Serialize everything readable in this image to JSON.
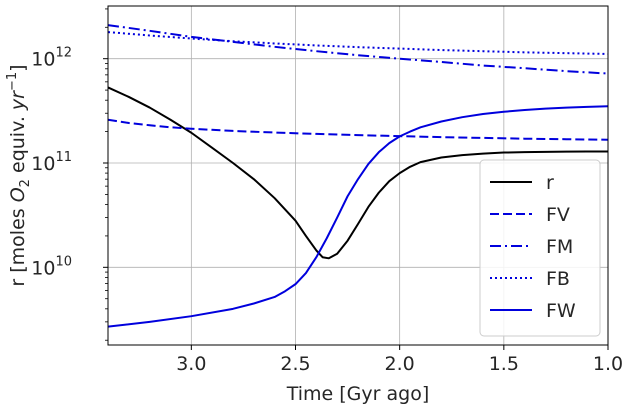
{
  "chart_data": {
    "type": "line",
    "title": "",
    "xlabel": "Time [Gyr ago]",
    "ylabel_parts": {
      "pre": "r [moles ",
      "o": "O",
      "o_sub": "2",
      "mid": " equiv. ",
      "yr": "yr",
      "yr_sup": "−1",
      "post": "]"
    },
    "x_reversed": true,
    "xlim": [
      3.4,
      1.0
    ],
    "ylim": [
      1800000000.0,
      3200000000000.0
    ],
    "yscale": "log",
    "grid": true,
    "legend_position": "lower right",
    "x_ticks": [
      3.0,
      2.5,
      2.0,
      1.5,
      1.0
    ],
    "x_tick_labels": [
      "3.0",
      "2.5",
      "2.0",
      "1.5",
      "1.0"
    ],
    "y_ticks": [
      {
        "value": 10000000000.0,
        "base": "10",
        "exp": "10"
      },
      {
        "value": 100000000000.0,
        "base": "10",
        "exp": "11"
      },
      {
        "value": 1000000000000.0,
        "base": "10",
        "exp": "12"
      }
    ],
    "series": [
      {
        "name": "r",
        "color": "#000000",
        "dash": "solid",
        "x": [
          3.4,
          3.3,
          3.2,
          3.1,
          3.0,
          2.9,
          2.8,
          2.7,
          2.6,
          2.5,
          2.45,
          2.4,
          2.37,
          2.34,
          2.3,
          2.25,
          2.2,
          2.15,
          2.1,
          2.05,
          2.0,
          1.95,
          1.9,
          1.8,
          1.7,
          1.6,
          1.5,
          1.4,
          1.3,
          1.2,
          1.1,
          1.0
        ],
        "y": [
          530000000000.0,
          430000000000.0,
          340000000000.0,
          260000000000.0,
          195000000000.0,
          140000000000.0,
          100000000000.0,
          70000000000.0,
          46000000000.0,
          28000000000.0,
          20000000000.0,
          14500000000.0,
          12500000000.0,
          12200000000.0,
          13500000000.0,
          18000000000.0,
          26000000000.0,
          38000000000.0,
          52000000000.0,
          67000000000.0,
          80000000000.0,
          92000000000.0,
          102000000000.0,
          113000000000.0,
          119000000000.0,
          123000000000.0,
          126000000000.0,
          127000000000.0,
          128000000000.0,
          128500000000.0,
          129000000000.0,
          129000000000.0
        ]
      },
      {
        "name": "FV",
        "color": "#0000dd",
        "dash": "dashed",
        "x": [
          3.4,
          3.3,
          3.2,
          3.1,
          3.0,
          2.8,
          2.6,
          2.4,
          2.2,
          2.0,
          1.8,
          1.6,
          1.4,
          1.2,
          1.0
        ],
        "y": [
          260000000000.0,
          242000000000.0,
          230000000000.0,
          220000000000.0,
          213000000000.0,
          203000000000.0,
          196000000000.0,
          190000000000.0,
          185000000000.0,
          181000000000.0,
          177000000000.0,
          174000000000.0,
          171000000000.0,
          169000000000.0,
          167000000000.0
        ]
      },
      {
        "name": "FM",
        "color": "#0000dd",
        "dash": "dashdot",
        "x": [
          3.4,
          3.2,
          3.0,
          2.8,
          2.6,
          2.4,
          2.2,
          2.0,
          1.8,
          1.6,
          1.4,
          1.2,
          1.0
        ],
        "y": [
          2100000000000.0,
          1850000000000.0,
          1620000000000.0,
          1450000000000.0,
          1300000000000.0,
          1180000000000.0,
          1080000000000.0,
          1000000000000.0,
          930000000000.0,
          860000000000.0,
          810000000000.0,
          760000000000.0,
          720000000000.0
        ]
      },
      {
        "name": "FB",
        "color": "#0000dd",
        "dash": "dotted",
        "x": [
          3.4,
          3.2,
          3.0,
          2.8,
          2.6,
          2.4,
          2.2,
          2.0,
          1.8,
          1.6,
          1.4,
          1.2,
          1.0
        ],
        "y": [
          1800000000000.0,
          1670000000000.0,
          1560000000000.0,
          1470000000000.0,
          1400000000000.0,
          1340000000000.0,
          1290000000000.0,
          1250000000000.0,
          1210000000000.0,
          1180000000000.0,
          1150000000000.0,
          1130000000000.0,
          1110000000000.0
        ]
      },
      {
        "name": "FW",
        "color": "#0000dd",
        "dash": "solid",
        "x": [
          3.4,
          3.2,
          3.0,
          2.8,
          2.7,
          2.6,
          2.55,
          2.5,
          2.45,
          2.4,
          2.35,
          2.3,
          2.25,
          2.2,
          2.15,
          2.1,
          2.05,
          2.0,
          1.95,
          1.9,
          1.8,
          1.7,
          1.6,
          1.5,
          1.4,
          1.3,
          1.2,
          1.1,
          1.0
        ],
        "y": [
          2700000000.0,
          3000000000.0,
          3400000000.0,
          4000000000.0,
          4500000000.0,
          5200000000.0,
          5900000000.0,
          6900000000.0,
          8800000000.0,
          12500000000.0,
          19000000000.0,
          30000000000.0,
          48000000000.0,
          70000000000.0,
          98000000000.0,
          127000000000.0,
          155000000000.0,
          180000000000.0,
          200000000000.0,
          220000000000.0,
          250000000000.0,
          275000000000.0,
          295000000000.0,
          310000000000.0,
          322000000000.0,
          332000000000.0,
          340000000000.0,
          345000000000.0,
          350000000000.0
        ]
      }
    ]
  }
}
